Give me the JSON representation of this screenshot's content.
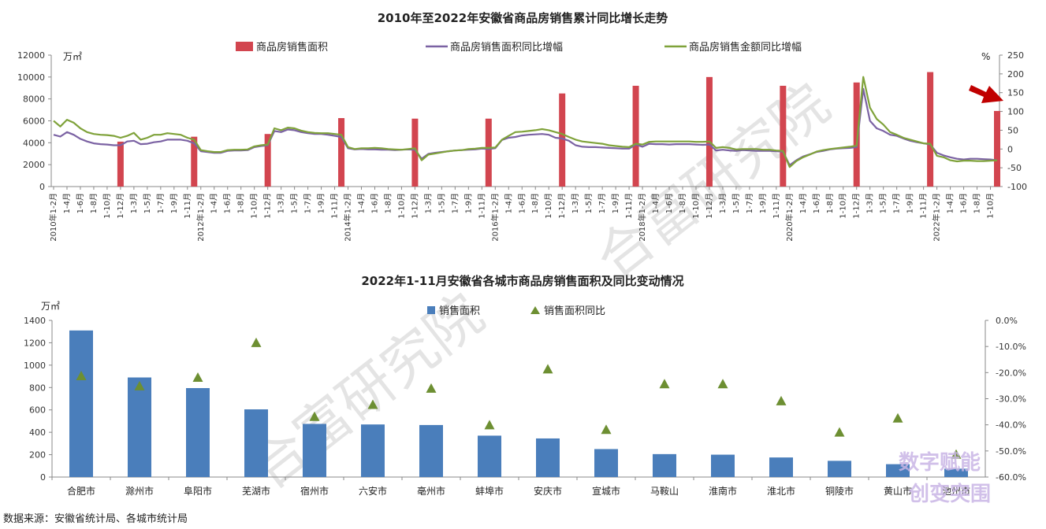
{
  "source": "数据来源：安徽省统计局、各城市统计局",
  "watermark": "合富研究院",
  "logo": {
    "line1": "数字赋能",
    "line2": "创变突围"
  },
  "chart_data": [
    {
      "type": "bar+line",
      "title": "2010年至2022年安徽省商品房销售累计同比增长走势",
      "left_unit": "万㎡",
      "right_unit": "%",
      "ylim_left": [
        0,
        12000
      ],
      "yticks_left": [
        0,
        2000,
        4000,
        6000,
        8000,
        10000,
        12000
      ],
      "ylim_right": [
        -100,
        250
      ],
      "yticks_right": [
        -100,
        -50,
        0,
        50,
        100,
        150,
        200,
        250
      ],
      "legend": [
        "商品房销售面积",
        "商品房销售面积同比增幅",
        "商品房销售金额同比增幅"
      ],
      "colors": {
        "bar": "#d2454f",
        "area_yoy": "#7b62a3",
        "amount_yoy": "#7fa23a",
        "arrow": "#c00000"
      },
      "x_tick_labels": [
        "2010年1-2月",
        "1-4月",
        "1-6月",
        "1-8月",
        "1-10月",
        "1-12月",
        "1-3月",
        "1-5月",
        "1-7月",
        "1-9月",
        "1-11月",
        "2012年1-2月",
        "1-4月",
        "1-6月",
        "1-8月",
        "1-10月",
        "1-12月",
        "1-3月",
        "1-5月",
        "1-7月",
        "1-9月",
        "1-11月",
        "2014年1-2月",
        "1-4月",
        "1-6月",
        "1-8月",
        "1-10月",
        "1-12月",
        "1-3月",
        "1-5月",
        "1-7月",
        "1-9月",
        "1-11月",
        "2016年1-2月",
        "1-4月",
        "1-6月",
        "1-8月",
        "1-10月",
        "1-12月",
        "1-3月",
        "1-5月",
        "1-7月",
        "1-9月",
        "1-11月",
        "2018年1-2月",
        "1-4月",
        "1-6月",
        "1-8月",
        "1-10月",
        "1-12月",
        "1-3月",
        "1-5月",
        "1-7月",
        "1-9月",
        "1-11月",
        "2020年1-2月",
        "1-4月",
        "1-6月",
        "1-8月",
        "1-10月",
        "1-12月",
        "1-3月",
        "1-5月",
        "1-7月",
        "1-9月",
        "1-11月",
        "2022年1-2月",
        "1-4月",
        "1-6月",
        "1-8月",
        "1-10月"
      ],
      "annual_bars": [
        {
          "index": 10,
          "label": "2010年1-12月",
          "value": 4100
        },
        {
          "index": 21,
          "label": "2011年1-12月",
          "value": 4550
        },
        {
          "index": 32,
          "label": "2012年1-12月",
          "value": 4800
        },
        {
          "index": 43,
          "label": "2013年1-12月",
          "value": 6250
        },
        {
          "index": 54,
          "label": "2014年1-12月",
          "value": 6200
        },
        {
          "index": 65,
          "label": "2015年1-12月",
          "value": 6200
        },
        {
          "index": 76,
          "label": "2016年1-12月",
          "value": 8500
        },
        {
          "index": 87,
          "label": "2017年1-12月",
          "value": 9200
        },
        {
          "index": 98,
          "label": "2018年1-12月",
          "value": 10000
        },
        {
          "index": 109,
          "label": "2019年1-12月",
          "value": 9200
        },
        {
          "index": 120,
          "label": "2020年1-12月",
          "value": 9500
        },
        {
          "index": 131,
          "label": "2021年1-12月",
          "value": 10450
        },
        {
          "index": 141,
          "label": "2022年1-11月",
          "value": 6900
        }
      ],
      "area_yoy_anchors": [
        [
          0,
          38
        ],
        [
          1,
          33
        ],
        [
          2,
          45
        ],
        [
          3,
          38
        ],
        [
          4,
          27
        ],
        [
          5,
          20
        ],
        [
          6,
          15
        ],
        [
          7,
          13
        ],
        [
          8,
          12
        ],
        [
          9,
          10
        ],
        [
          10,
          10
        ],
        [
          11,
          20
        ],
        [
          12,
          22
        ],
        [
          13,
          13
        ],
        [
          14,
          14
        ],
        [
          15,
          18
        ],
        [
          16,
          20
        ],
        [
          17,
          25
        ],
        [
          18,
          25
        ],
        [
          19,
          25
        ],
        [
          20,
          22
        ],
        [
          21,
          15
        ],
        [
          22,
          -6
        ],
        [
          23,
          -8
        ],
        [
          24,
          -10
        ],
        [
          25,
          -10
        ],
        [
          26,
          -5
        ],
        [
          27,
          -4
        ],
        [
          28,
          -4
        ],
        [
          29,
          -3
        ],
        [
          30,
          5
        ],
        [
          31,
          8
        ],
        [
          32,
          10
        ],
        [
          33,
          48
        ],
        [
          34,
          45
        ],
        [
          35,
          52
        ],
        [
          36,
          50
        ],
        [
          37,
          45
        ],
        [
          38,
          42
        ],
        [
          39,
          40
        ],
        [
          40,
          40
        ],
        [
          41,
          38
        ],
        [
          42,
          35
        ],
        [
          43,
          32
        ],
        [
          44,
          2
        ],
        [
          45,
          -1
        ],
        [
          46,
          0
        ],
        [
          47,
          -1
        ],
        [
          48,
          -1
        ],
        [
          49,
          -2
        ],
        [
          50,
          -2
        ],
        [
          51,
          -3
        ],
        [
          52,
          -2
        ],
        [
          53,
          -1
        ],
        [
          54,
          -2
        ],
        [
          55,
          -26
        ],
        [
          56,
          -13
        ],
        [
          57,
          -10
        ],
        [
          58,
          -8
        ],
        [
          59,
          -6
        ],
        [
          60,
          -4
        ],
        [
          61,
          -3
        ],
        [
          62,
          -2
        ],
        [
          63,
          -1
        ],
        [
          64,
          1
        ],
        [
          65,
          0
        ],
        [
          66,
          2
        ],
        [
          67,
          24
        ],
        [
          68,
          30
        ],
        [
          69,
          32
        ],
        [
          70,
          36
        ],
        [
          71,
          38
        ],
        [
          72,
          39
        ],
        [
          73,
          40
        ],
        [
          74,
          38
        ],
        [
          75,
          30
        ],
        [
          76,
          28
        ],
        [
          77,
          22
        ],
        [
          78,
          10
        ],
        [
          79,
          6
        ],
        [
          80,
          5
        ],
        [
          81,
          5
        ],
        [
          82,
          4
        ],
        [
          83,
          3
        ],
        [
          84,
          2
        ],
        [
          85,
          1
        ],
        [
          86,
          1
        ],
        [
          87,
          12
        ],
        [
          88,
          6
        ],
        [
          89,
          14
        ],
        [
          90,
          13
        ],
        [
          91,
          13
        ],
        [
          92,
          12
        ],
        [
          93,
          13
        ],
        [
          94,
          13
        ],
        [
          95,
          13
        ],
        [
          96,
          12
        ],
        [
          97,
          11
        ],
        [
          98,
          12
        ],
        [
          99,
          -4
        ],
        [
          100,
          -2
        ],
        [
          101,
          -4
        ],
        [
          102,
          -5
        ],
        [
          103,
          -3
        ],
        [
          104,
          -4
        ],
        [
          105,
          -5
        ],
        [
          106,
          -5
        ],
        [
          107,
          -5
        ],
        [
          108,
          -6
        ],
        [
          109,
          -7
        ],
        [
          110,
          -43
        ],
        [
          111,
          -30
        ],
        [
          112,
          -20
        ],
        [
          113,
          -14
        ],
        [
          114,
          -8
        ],
        [
          115,
          -5
        ],
        [
          116,
          -1
        ],
        [
          117,
          1
        ],
        [
          118,
          2
        ],
        [
          119,
          3
        ],
        [
          120,
          5
        ],
        [
          121,
          160
        ],
        [
          122,
          75
        ],
        [
          123,
          55
        ],
        [
          124,
          48
        ],
        [
          125,
          38
        ],
        [
          126,
          35
        ],
        [
          127,
          28
        ],
        [
          128,
          22
        ],
        [
          129,
          18
        ],
        [
          130,
          15
        ],
        [
          131,
          12
        ],
        [
          132,
          -10
        ],
        [
          133,
          -17
        ],
        [
          134,
          -22
        ],
        [
          135,
          -26
        ],
        [
          136,
          -28
        ],
        [
          137,
          -26
        ],
        [
          138,
          -26
        ],
        [
          139,
          -27
        ],
        [
          140,
          -28
        ],
        [
          141,
          -30
        ]
      ],
      "amount_yoy_anchors": [
        [
          0,
          75
        ],
        [
          1,
          60
        ],
        [
          2,
          78
        ],
        [
          3,
          70
        ],
        [
          4,
          55
        ],
        [
          5,
          45
        ],
        [
          6,
          40
        ],
        [
          7,
          38
        ],
        [
          8,
          37
        ],
        [
          9,
          35
        ],
        [
          10,
          30
        ],
        [
          11,
          35
        ],
        [
          12,
          43
        ],
        [
          13,
          25
        ],
        [
          14,
          30
        ],
        [
          15,
          38
        ],
        [
          16,
          38
        ],
        [
          17,
          42
        ],
        [
          18,
          40
        ],
        [
          19,
          38
        ],
        [
          20,
          30
        ],
        [
          21,
          25
        ],
        [
          22,
          -3
        ],
        [
          23,
          -6
        ],
        [
          24,
          -8
        ],
        [
          25,
          -8
        ],
        [
          26,
          -3
        ],
        [
          27,
          -2
        ],
        [
          28,
          -2
        ],
        [
          29,
          -1
        ],
        [
          30,
          7
        ],
        [
          31,
          10
        ],
        [
          32,
          12
        ],
        [
          33,
          55
        ],
        [
          34,
          50
        ],
        [
          35,
          57
        ],
        [
          36,
          55
        ],
        [
          37,
          49
        ],
        [
          38,
          45
        ],
        [
          39,
          43
        ],
        [
          40,
          42
        ],
        [
          41,
          42
        ],
        [
          42,
          40
        ],
        [
          43,
          38
        ],
        [
          44,
          5
        ],
        [
          45,
          0
        ],
        [
          46,
          2
        ],
        [
          47,
          2
        ],
        [
          48,
          3
        ],
        [
          49,
          2
        ],
        [
          50,
          0
        ],
        [
          51,
          -1
        ],
        [
          52,
          -2
        ],
        [
          53,
          0
        ],
        [
          54,
          2
        ],
        [
          55,
          -30
        ],
        [
          56,
          -15
        ],
        [
          57,
          -12
        ],
        [
          58,
          -9
        ],
        [
          59,
          -6
        ],
        [
          60,
          -4
        ],
        [
          61,
          -3
        ],
        [
          62,
          0
        ],
        [
          63,
          1
        ],
        [
          64,
          3
        ],
        [
          65,
          3
        ],
        [
          66,
          4
        ],
        [
          67,
          25
        ],
        [
          68,
          35
        ],
        [
          69,
          45
        ],
        [
          70,
          46
        ],
        [
          71,
          48
        ],
        [
          72,
          50
        ],
        [
          73,
          53
        ],
        [
          74,
          50
        ],
        [
          75,
          45
        ],
        [
          76,
          40
        ],
        [
          77,
          32
        ],
        [
          78,
          25
        ],
        [
          79,
          20
        ],
        [
          80,
          18
        ],
        [
          81,
          16
        ],
        [
          82,
          14
        ],
        [
          83,
          10
        ],
        [
          84,
          8
        ],
        [
          85,
          6
        ],
        [
          86,
          5
        ],
        [
          87,
          14
        ],
        [
          88,
          12
        ],
        [
          89,
          19
        ],
        [
          90,
          20
        ],
        [
          91,
          20
        ],
        [
          92,
          20
        ],
        [
          93,
          20
        ],
        [
          94,
          20
        ],
        [
          95,
          20
        ],
        [
          96,
          19
        ],
        [
          97,
          19
        ],
        [
          98,
          20
        ],
        [
          99,
          3
        ],
        [
          100,
          5
        ],
        [
          101,
          3
        ],
        [
          102,
          -1
        ],
        [
          103,
          0
        ],
        [
          104,
          0
        ],
        [
          105,
          0
        ],
        [
          106,
          -2
        ],
        [
          107,
          -2
        ],
        [
          108,
          -4
        ],
        [
          109,
          -5
        ],
        [
          110,
          -48
        ],
        [
          111,
          -32
        ],
        [
          112,
          -22
        ],
        [
          113,
          -15
        ],
        [
          114,
          -7
        ],
        [
          115,
          -3
        ],
        [
          116,
          0
        ],
        [
          117,
          2
        ],
        [
          118,
          4
        ],
        [
          119,
          6
        ],
        [
          120,
          9
        ],
        [
          121,
          192
        ],
        [
          122,
          110
        ],
        [
          123,
          80
        ],
        [
          124,
          65
        ],
        [
          125,
          45
        ],
        [
          126,
          38
        ],
        [
          127,
          30
        ],
        [
          128,
          25
        ],
        [
          129,
          20
        ],
        [
          130,
          15
        ],
        [
          131,
          14
        ],
        [
          132,
          -18
        ],
        [
          133,
          -22
        ],
        [
          134,
          -30
        ],
        [
          135,
          -33
        ],
        [
          136,
          -31
        ],
        [
          137,
          -31
        ],
        [
          138,
          -32
        ],
        [
          139,
          -32
        ],
        [
          140,
          -31
        ],
        [
          141,
          -30
        ]
      ]
    },
    {
      "type": "bar+scatter",
      "title": "2022年1-11月安徽省各城市商品房销售面积及同比变动情况",
      "left_unit": "万㎡",
      "ylim_left": [
        0,
        1400
      ],
      "yticks_left": [
        0,
        200,
        400,
        600,
        800,
        1000,
        1200,
        1400
      ],
      "ylim_right": [
        -60,
        0
      ],
      "yticks_right": [
        "-60.0%",
        "-50.0%",
        "-40.0%",
        "-30.0%",
        "-20.0%",
        "-10.0%",
        "0.0%"
      ],
      "legend": [
        "销售面积",
        "销售面积同比"
      ],
      "colors": {
        "bar": "#4a7ebb",
        "marker": "#6d8f32"
      },
      "categories": [
        "合肥市",
        "滁州市",
        "阜阳市",
        "芜湖市",
        "宿州市",
        "六安市",
        "亳州市",
        "蚌埠市",
        "安庆市",
        "宣城市",
        "马鞍山",
        "淮南市",
        "淮北市",
        "铜陵市",
        "黄山市",
        "池州市"
      ],
      "values": [
        1310,
        890,
        795,
        605,
        475,
        470,
        465,
        370,
        345,
        250,
        205,
        200,
        175,
        145,
        115,
        75
      ],
      "yoy_percent": [
        -21.4,
        -25.3,
        -22.0,
        -8.7,
        -37.0,
        -32.4,
        -26.2,
        -40.2,
        -18.8,
        -42.0,
        -24.5,
        -24.5,
        -31.0,
        -43.0,
        -37.6,
        -51.5
      ]
    }
  ]
}
